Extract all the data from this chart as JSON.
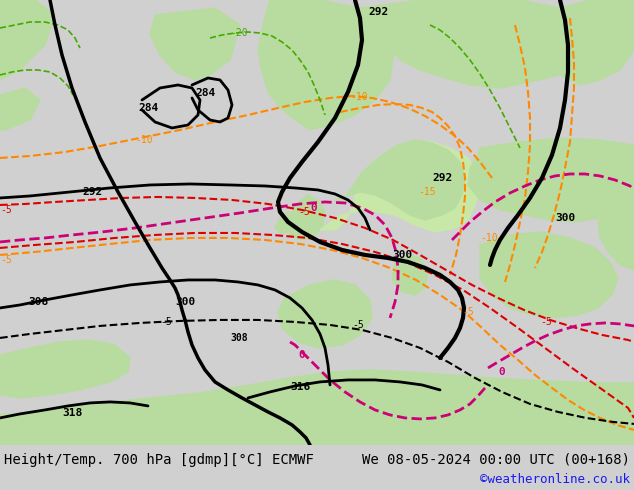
{
  "title_left": "Height/Temp. 700 hPa [gdmp][°C] ECMWF",
  "title_right": "We 08-05-2024 00:00 UTC (00+168)",
  "credit": "©weatheronline.co.uk",
  "bg_color": "#d0d0d0",
  "land_green": "#b8dca0",
  "land_green2": "#c8e8a8",
  "sea_gray": "#c8c8c8",
  "title_color": "#000000",
  "credit_color": "#1a1aee",
  "font_family": "monospace",
  "title_fontsize": 10,
  "credit_fontsize": 9,
  "fig_width": 6.34,
  "fig_height": 4.9,
  "dpi": 100
}
